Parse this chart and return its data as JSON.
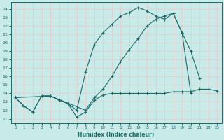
{
  "xlabel": "Humidex (Indice chaleur)",
  "bg_color": "#c8eae8",
  "line_color": "#1a6b68",
  "grid_color": "#e8c8c8",
  "xlim": [
    -0.5,
    23.5
  ],
  "ylim": [
    10.5,
    24.8
  ],
  "yticks": [
    11,
    12,
    13,
    14,
    15,
    16,
    17,
    18,
    19,
    20,
    21,
    22,
    23,
    24
  ],
  "xticks": [
    0,
    1,
    2,
    3,
    4,
    5,
    6,
    7,
    8,
    9,
    10,
    11,
    12,
    13,
    14,
    15,
    16,
    17,
    18,
    19,
    20,
    21,
    22,
    23
  ],
  "line1_x": [
    0,
    1,
    2,
    3,
    4,
    5,
    6,
    7,
    8,
    9,
    10,
    11,
    12,
    13,
    14,
    15,
    16,
    17,
    18,
    19,
    20,
    21,
    22,
    23
  ],
  "line1_y": [
    13.5,
    12.5,
    11.8,
    13.7,
    13.7,
    13.2,
    12.8,
    11.2,
    11.8,
    13.2,
    13.8,
    14.0,
    14.0,
    14.0,
    14.0,
    14.0,
    14.0,
    14.0,
    14.2,
    14.2,
    14.2,
    14.5,
    14.5,
    14.3
  ],
  "line2_x": [
    0,
    1,
    2,
    3,
    4,
    5,
    6,
    7,
    8,
    9,
    10,
    11,
    12,
    13,
    14,
    15,
    16,
    17,
    18,
    19,
    20,
    21
  ],
  "line2_y": [
    13.5,
    12.5,
    11.8,
    13.7,
    13.7,
    13.2,
    12.8,
    12.0,
    16.5,
    19.8,
    21.2,
    22.2,
    23.2,
    23.6,
    24.2,
    23.8,
    23.2,
    22.8,
    23.5,
    21.2,
    19.0,
    15.8
  ],
  "line3_x": [
    0,
    4,
    8,
    9,
    10,
    11,
    12,
    13,
    14,
    15,
    16,
    17,
    18,
    19,
    20,
    21,
    22,
    23
  ],
  "line3_y": [
    13.5,
    13.7,
    12.0,
    13.5,
    14.5,
    16.0,
    17.8,
    19.2,
    20.5,
    22.0,
    22.8,
    23.2,
    23.5,
    21.2,
    14.0,
    null,
    null,
    null
  ]
}
